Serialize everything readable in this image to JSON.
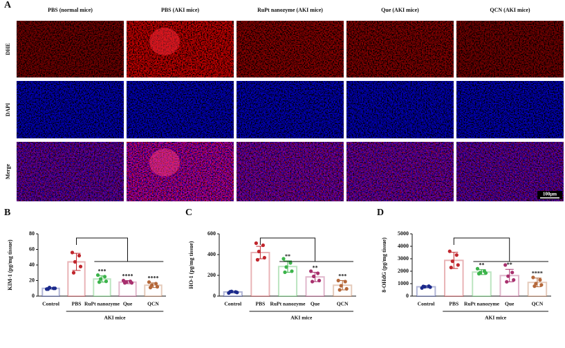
{
  "panel_a": {
    "label": "A",
    "columns": [
      "PBS (normal mice)",
      "PBS (AKI mice)",
      "RuPt nanozyme (AKI mice)",
      "Que (AKI mice)",
      "QCN (AKI mice)"
    ],
    "rows": [
      "DHE",
      "DAPI",
      "Merge"
    ],
    "scale_bar": "100μm"
  },
  "chart_data": [
    {
      "type": "bar",
      "panel": "B",
      "ylabel": "KIM-1 (pg/mg tissue)",
      "categories": [
        "Control",
        "PBS",
        "RuPt nanozyme",
        "Que",
        "QCN"
      ],
      "group_label": "AKI mice",
      "values": [
        10,
        44,
        22,
        18,
        14
      ],
      "errors": [
        1,
        11,
        4,
        2,
        3
      ],
      "points": [
        [
          9,
          10,
          11,
          10,
          9
        ],
        [
          56,
          52,
          44,
          38,
          30
        ],
        [
          27,
          25,
          22,
          19,
          18
        ],
        [
          20,
          19,
          18,
          17,
          17
        ],
        [
          18,
          16,
          14,
          12,
          11
        ]
      ],
      "colors": [
        "#1c2a8c",
        "#c0262d",
        "#3cb44b",
        "#a8306e",
        "#b5683a"
      ],
      "annotations": [
        null,
        null,
        "***",
        "****",
        "****"
      ],
      "ylim": [
        0,
        80
      ],
      "yticks": [
        0,
        20,
        40,
        60,
        80
      ]
    },
    {
      "type": "bar",
      "panel": "C",
      "ylabel": "HO-1 (pg/mg tissue)",
      "categories": [
        "Control",
        "PBS",
        "RuPt nanozyme",
        "Que",
        "QCN"
      ],
      "group_label": "AKI mice",
      "values": [
        40,
        420,
        285,
        185,
        105
      ],
      "errors": [
        8,
        60,
        55,
        45,
        45
      ],
      "points": [
        [
          30,
          40,
          45,
          35,
          42
        ],
        [
          510,
          490,
          430,
          370,
          350
        ],
        [
          360,
          320,
          280,
          240,
          230
        ],
        [
          240,
          220,
          190,
          150,
          140
        ],
        [
          150,
          140,
          100,
          70,
          60
        ]
      ],
      "colors": [
        "#1c2a8c",
        "#c0262d",
        "#3cb44b",
        "#a8306e",
        "#b5683a"
      ],
      "annotations": [
        null,
        null,
        "**",
        "**",
        "***"
      ],
      "ylim": [
        0,
        600
      ],
      "yticks": [
        0,
        200,
        400,
        600
      ]
    },
    {
      "type": "bar",
      "panel": "D",
      "ylabel": "8-OHdG (pg/mg tissue)",
      "categories": [
        "Control",
        "PBS",
        "RuPt nanozyme",
        "Que",
        "QCN"
      ],
      "group_label": "AKI mice",
      "values": [
        750,
        2870,
        1930,
        1650,
        1100
      ],
      "errors": [
        80,
        650,
        200,
        500,
        350
      ],
      "points": [
        [
          650,
          800,
          750,
          720,
          780
        ],
        [
          3600,
          3300,
          2800,
          2500,
          2300
        ],
        [
          2200,
          2000,
          1900,
          1850,
          1800
        ],
        [
          2500,
          1900,
          1600,
          1300,
          1150
        ],
        [
          1500,
          1300,
          1000,
          900,
          800
        ]
      ],
      "colors": [
        "#1c2a8c",
        "#c0262d",
        "#3cb44b",
        "#a8306e",
        "#b5683a"
      ],
      "annotations": [
        null,
        null,
        "**",
        "**",
        "****"
      ],
      "ylim": [
        0,
        5000
      ],
      "yticks": [
        0,
        1000,
        2000,
        3000,
        4000,
        5000
      ]
    }
  ]
}
